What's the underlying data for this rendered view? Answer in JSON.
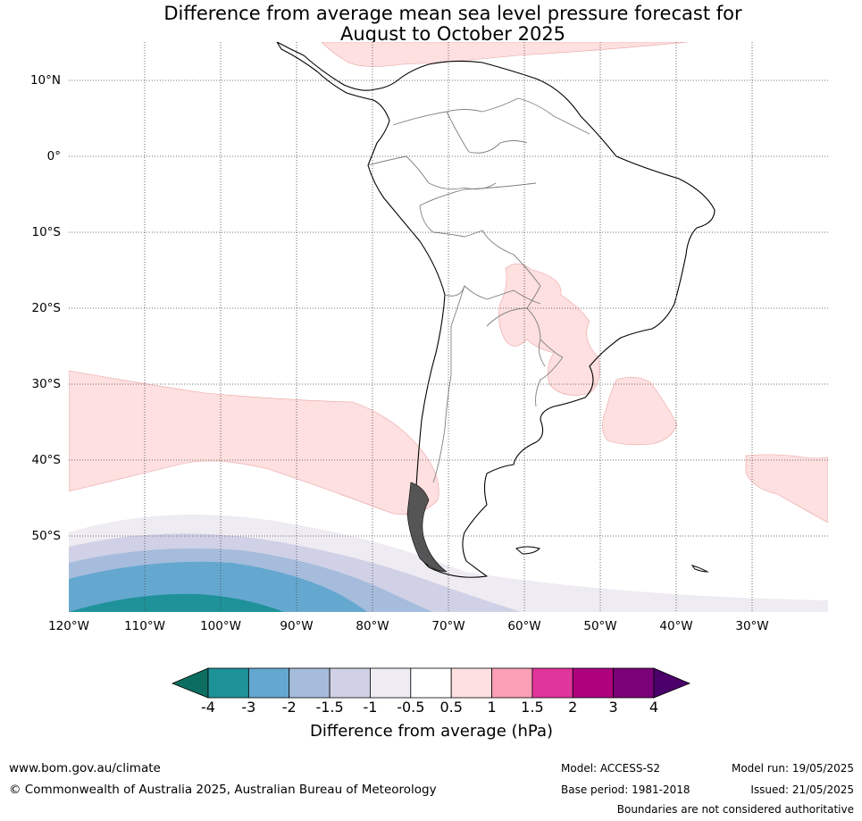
{
  "title": {
    "line1": "Difference from average mean sea level pressure forecast for",
    "line2": "August to October 2025"
  },
  "map": {
    "region": "South America",
    "lat_labels": [
      "10°N",
      "0°",
      "10°S",
      "20°S",
      "30°S",
      "40°S",
      "50°S"
    ],
    "lon_labels": [
      "120°W",
      "110°W",
      "100°W",
      "90°W",
      "80°W",
      "70°W",
      "60°W",
      "50°W",
      "40°W",
      "30°W"
    ]
  },
  "colorbar": {
    "ticks": [
      "-4",
      "-3",
      "-2",
      "-1.5",
      "-1",
      "-0.5",
      "0.5",
      "1",
      "1.5",
      "2",
      "3",
      "4"
    ],
    "colors": [
      "#1f9299",
      "#64a8d0",
      "#a6bcdc",
      "#d0d1e6",
      "#efebf2",
      "#ffffff",
      "#fde0df",
      "#fa9fb5",
      "#e0359a",
      "#ad017e",
      "#7a0177"
    ],
    "low_extend_color": "#0c6e60",
    "high_extend_color": "#4b006a",
    "label": "Difference from average (hPa)"
  },
  "footer": {
    "url": "www.bom.gov.au/climate",
    "copyright": "© Commonwealth of Australia 2025, Australian Bureau of Meteorology",
    "model": "Model: ACCESS-S2",
    "base_period": "Base period: 1981-2018",
    "model_run": "Model run: 19/05/2025",
    "issued": "Issued: 21/05/2025",
    "disclaimer": "Boundaries are not considered authoritative"
  }
}
